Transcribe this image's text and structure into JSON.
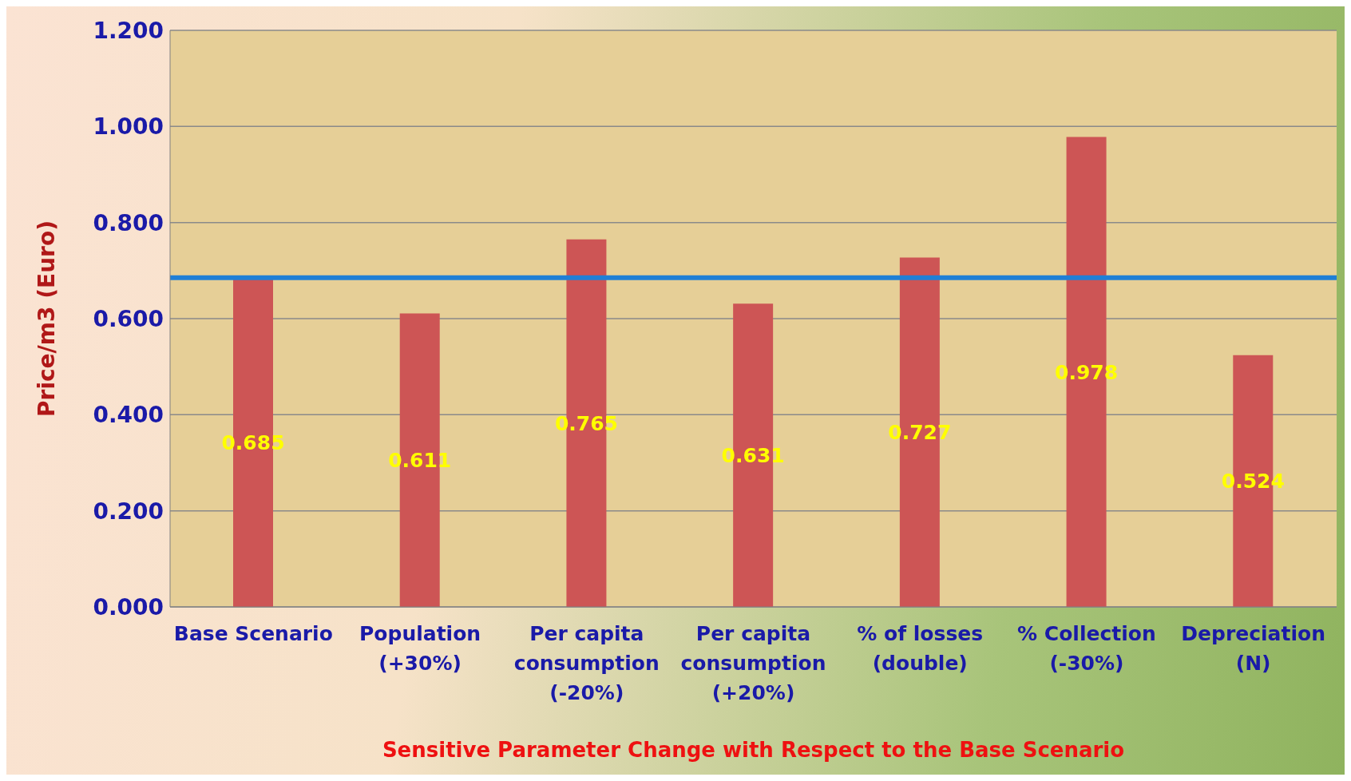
{
  "chart_data": {
    "type": "bar",
    "xlabel": "Sensitive Parameter Change with Respect to the Base Scenario",
    "ylabel": "Price/m3  (Euro)",
    "categories": [
      "Base Scenario",
      "Population (+30%)",
      "Per capita consumption (-20%)",
      "Per capita consumption (+20%)",
      "% of losses (double)",
      "% Collection (-30%)",
      "Depreciation (N)"
    ],
    "values": [
      0.685,
      0.611,
      0.765,
      0.631,
      0.727,
      0.978,
      0.524
    ],
    "color": "#cd5555",
    "data_labels": true,
    "grid": "y",
    "legend": false,
    "ylim": [
      0,
      1.2
    ],
    "yticks": [
      {
        "value": 0,
        "label": "0.000"
      },
      {
        "value": 0.2,
        "label": "0.200"
      },
      {
        "value": 0.4,
        "label": "0.400"
      },
      {
        "value": 0.6,
        "label": "0.600"
      },
      {
        "value": 0.8,
        "label": "0.800"
      },
      {
        "value": 1,
        "label": "1.000"
      },
      {
        "value": 1.2,
        "label": "1.200"
      }
    ],
    "ref_lines": [
      {
        "axis": "y",
        "value": 0.685,
        "color": "#1f7fd6"
      }
    ]
  }
}
